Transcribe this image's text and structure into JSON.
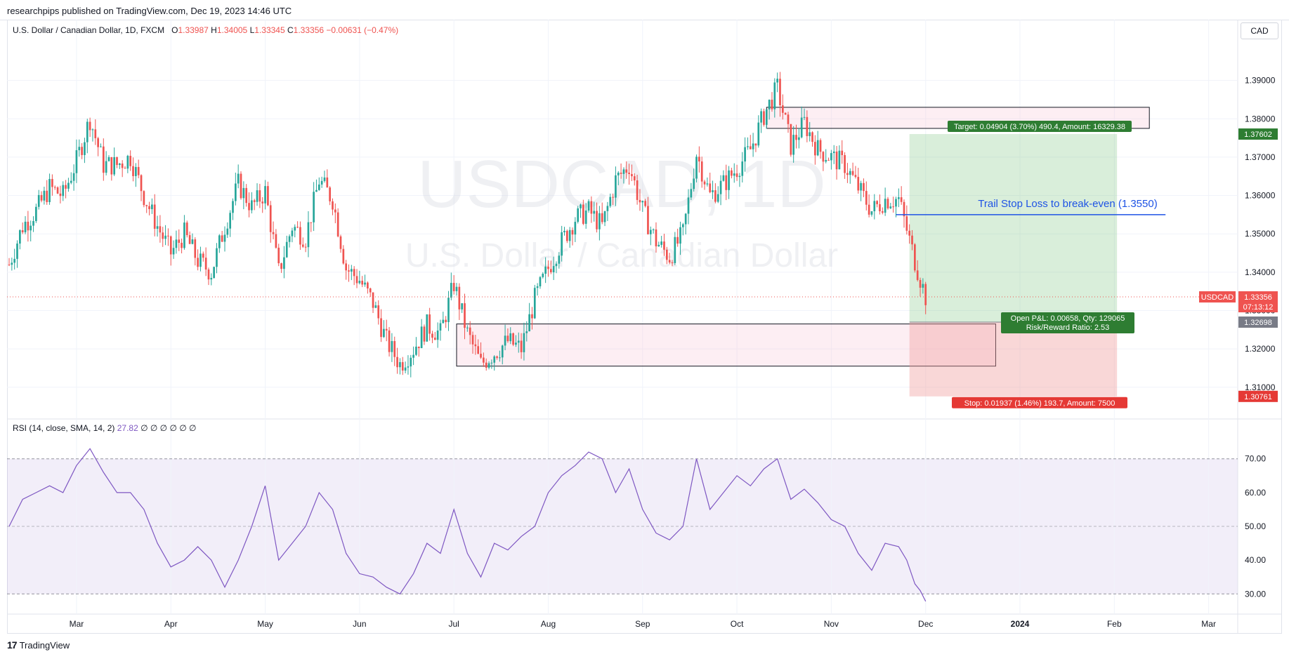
{
  "header": {
    "published": "researchpips published on TradingView.com, Dec 19, 2023 14:46 UTC"
  },
  "legend": {
    "title": "U.S. Dollar / Canadian Dollar, 1D, FXCM",
    "o_label": "O",
    "o": "1.33987",
    "h_label": "H",
    "h": "1.34005",
    "l_label": "L",
    "l": "1.33345",
    "c_label": "C",
    "c": "1.33356",
    "change": "−0.00631 (−0.47%)"
  },
  "currency_button": "CAD",
  "watermark": {
    "symbol": "USDCAD, 1D",
    "name": "U.S. Dollar / Canadian Dollar"
  },
  "rsi_legend": {
    "label": "RSI (14, close, SMA, 14, 2)",
    "value": "27.82",
    "zeros": "∅ ∅ ∅ ∅ ∅ ∅"
  },
  "footer": {
    "logo": "17",
    "brand": "TradingView"
  },
  "colors": {
    "up": "#26a69a",
    "down": "#ef5350",
    "rsi": "#7e57c2",
    "target": "#2e7d32",
    "stop": "#e53935",
    "trail": "#1e53e5"
  },
  "chart_data": [
    {
      "type": "candlestick",
      "symbol": "USDCAD",
      "timeframe": "1D",
      "x_ticks": [
        "Mar",
        "Apr",
        "May",
        "Jun",
        "Jul",
        "Aug",
        "Sep",
        "Oct",
        "Nov",
        "Dec",
        "2024",
        "Feb",
        "Mar"
      ],
      "y_ticks": [
        "1.39000",
        "1.38000",
        "1.37000",
        "1.36000",
        "1.35000",
        "1.34000",
        "1.33000",
        "1.32000",
        "1.31000"
      ],
      "ylim": [
        1.303,
        1.4
      ],
      "last_price": "1.33356",
      "countdown": "07:13:12",
      "price_tag_label": "USDCAD",
      "target_price": "1.37602",
      "entry_price": "1.32698",
      "stop_price": "1.30761",
      "close_path": [
        [
          0,
          1.342
        ],
        [
          5,
          1.352
        ],
        [
          10,
          1.356
        ],
        [
          15,
          1.362
        ],
        [
          20,
          1.36
        ],
        [
          25,
          1.369
        ],
        [
          30,
          1.38
        ],
        [
          35,
          1.368
        ],
        [
          40,
          1.368
        ],
        [
          45,
          1.37
        ],
        [
          50,
          1.36
        ],
        [
          55,
          1.352
        ],
        [
          60,
          1.345
        ],
        [
          65,
          1.35
        ],
        [
          70,
          1.343
        ],
        [
          75,
          1.34
        ],
        [
          80,
          1.352
        ],
        [
          85,
          1.363
        ],
        [
          90,
          1.357
        ],
        [
          95,
          1.361
        ],
        [
          100,
          1.34
        ],
        [
          105,
          1.352
        ],
        [
          110,
          1.349
        ],
        [
          115,
          1.364
        ],
        [
          120,
          1.359
        ],
        [
          125,
          1.341
        ],
        [
          130,
          1.338
        ],
        [
          135,
          1.332
        ],
        [
          140,
          1.322
        ],
        [
          145,
          1.316
        ],
        [
          150,
          1.32
        ],
        [
          155,
          1.326
        ],
        [
          160,
          1.324
        ],
        [
          165,
          1.337
        ],
        [
          170,
          1.324
        ],
        [
          175,
          1.316
        ],
        [
          180,
          1.319
        ],
        [
          185,
          1.322
        ],
        [
          190,
          1.32
        ],
        [
          195,
          1.333
        ],
        [
          200,
          1.341
        ],
        [
          205,
          1.348
        ],
        [
          210,
          1.354
        ],
        [
          215,
          1.356
        ],
        [
          220,
          1.352
        ],
        [
          225,
          1.364
        ],
        [
          230,
          1.368
        ],
        [
          235,
          1.356
        ],
        [
          240,
          1.348
        ],
        [
          245,
          1.344
        ],
        [
          250,
          1.35
        ],
        [
          255,
          1.371
        ],
        [
          260,
          1.36
        ],
        [
          265,
          1.363
        ],
        [
          270,
          1.367
        ],
        [
          275,
          1.372
        ],
        [
          280,
          1.381
        ],
        [
          285,
          1.388
        ],
        [
          290,
          1.373
        ],
        [
          295,
          1.379
        ],
        [
          300,
          1.372
        ],
        [
          305,
          1.37
        ],
        [
          310,
          1.368
        ],
        [
          315,
          1.362
        ],
        [
          320,
          1.356
        ],
        [
          325,
          1.359
        ],
        [
          330,
          1.359
        ],
        [
          333,
          1.351
        ],
        [
          336,
          1.343
        ],
        [
          340,
          1.3336
        ]
      ],
      "trail_stop_label": "Trail Stop Loss to break-even (1.3550)",
      "trail_stop_price": 1.355,
      "position": {
        "target_label": "Target: 0.04904 (3.70%) 490.4, Amount: 16329.38",
        "stop_label": "Stop: 0.01937 (1.46%) 193.7, Amount: 7500",
        "pnl_label": "Open P&L: 0.00658, Qty: 129065",
        "rr_label": "Risk/Reward Ratio: 2.53"
      },
      "zones": [
        {
          "name": "supply",
          "from": 1.3775,
          "to": 1.383
        },
        {
          "name": "demand",
          "from": 1.3155,
          "to": 1.3265
        }
      ]
    },
    {
      "type": "line",
      "name": "RSI (14, close, SMA, 14, 2)",
      "y_ticks": [
        "70.00",
        "60.00",
        "50.00",
        "40.00",
        "30.00"
      ],
      "ylim": [
        23,
        77
      ],
      "band": [
        30,
        70
      ],
      "last_value": 27.82,
      "values": [
        [
          0,
          50
        ],
        [
          5,
          58
        ],
        [
          10,
          60
        ],
        [
          15,
          62
        ],
        [
          20,
          60
        ],
        [
          25,
          68
        ],
        [
          30,
          73
        ],
        [
          35,
          66
        ],
        [
          40,
          60
        ],
        [
          45,
          60
        ],
        [
          50,
          55
        ],
        [
          55,
          45
        ],
        [
          60,
          38
        ],
        [
          65,
          40
        ],
        [
          70,
          44
        ],
        [
          75,
          40
        ],
        [
          80,
          32
        ],
        [
          85,
          40
        ],
        [
          90,
          50
        ],
        [
          95,
          62
        ],
        [
          100,
          40
        ],
        [
          105,
          45
        ],
        [
          110,
          50
        ],
        [
          115,
          60
        ],
        [
          120,
          55
        ],
        [
          125,
          42
        ],
        [
          130,
          36
        ],
        [
          135,
          35
        ],
        [
          140,
          32
        ],
        [
          145,
          30
        ],
        [
          150,
          36
        ],
        [
          155,
          45
        ],
        [
          160,
          42
        ],
        [
          165,
          55
        ],
        [
          170,
          42
        ],
        [
          175,
          35
        ],
        [
          180,
          45
        ],
        [
          185,
          43
        ],
        [
          190,
          47
        ],
        [
          195,
          50
        ],
        [
          200,
          60
        ],
        [
          205,
          65
        ],
        [
          210,
          68
        ],
        [
          215,
          72
        ],
        [
          220,
          70
        ],
        [
          225,
          60
        ],
        [
          230,
          67
        ],
        [
          235,
          55
        ],
        [
          240,
          48
        ],
        [
          245,
          46
        ],
        [
          250,
          50
        ],
        [
          255,
          70
        ],
        [
          260,
          55
        ],
        [
          265,
          60
        ],
        [
          270,
          65
        ],
        [
          275,
          62
        ],
        [
          280,
          67
        ],
        [
          285,
          70
        ],
        [
          290,
          58
        ],
        [
          295,
          61
        ],
        [
          300,
          57
        ],
        [
          305,
          52
        ],
        [
          310,
          50
        ],
        [
          315,
          42
        ],
        [
          320,
          37
        ],
        [
          325,
          45
        ],
        [
          330,
          44
        ],
        [
          333,
          40
        ],
        [
          336,
          33
        ],
        [
          338,
          31
        ],
        [
          340,
          27.82
        ]
      ]
    }
  ]
}
